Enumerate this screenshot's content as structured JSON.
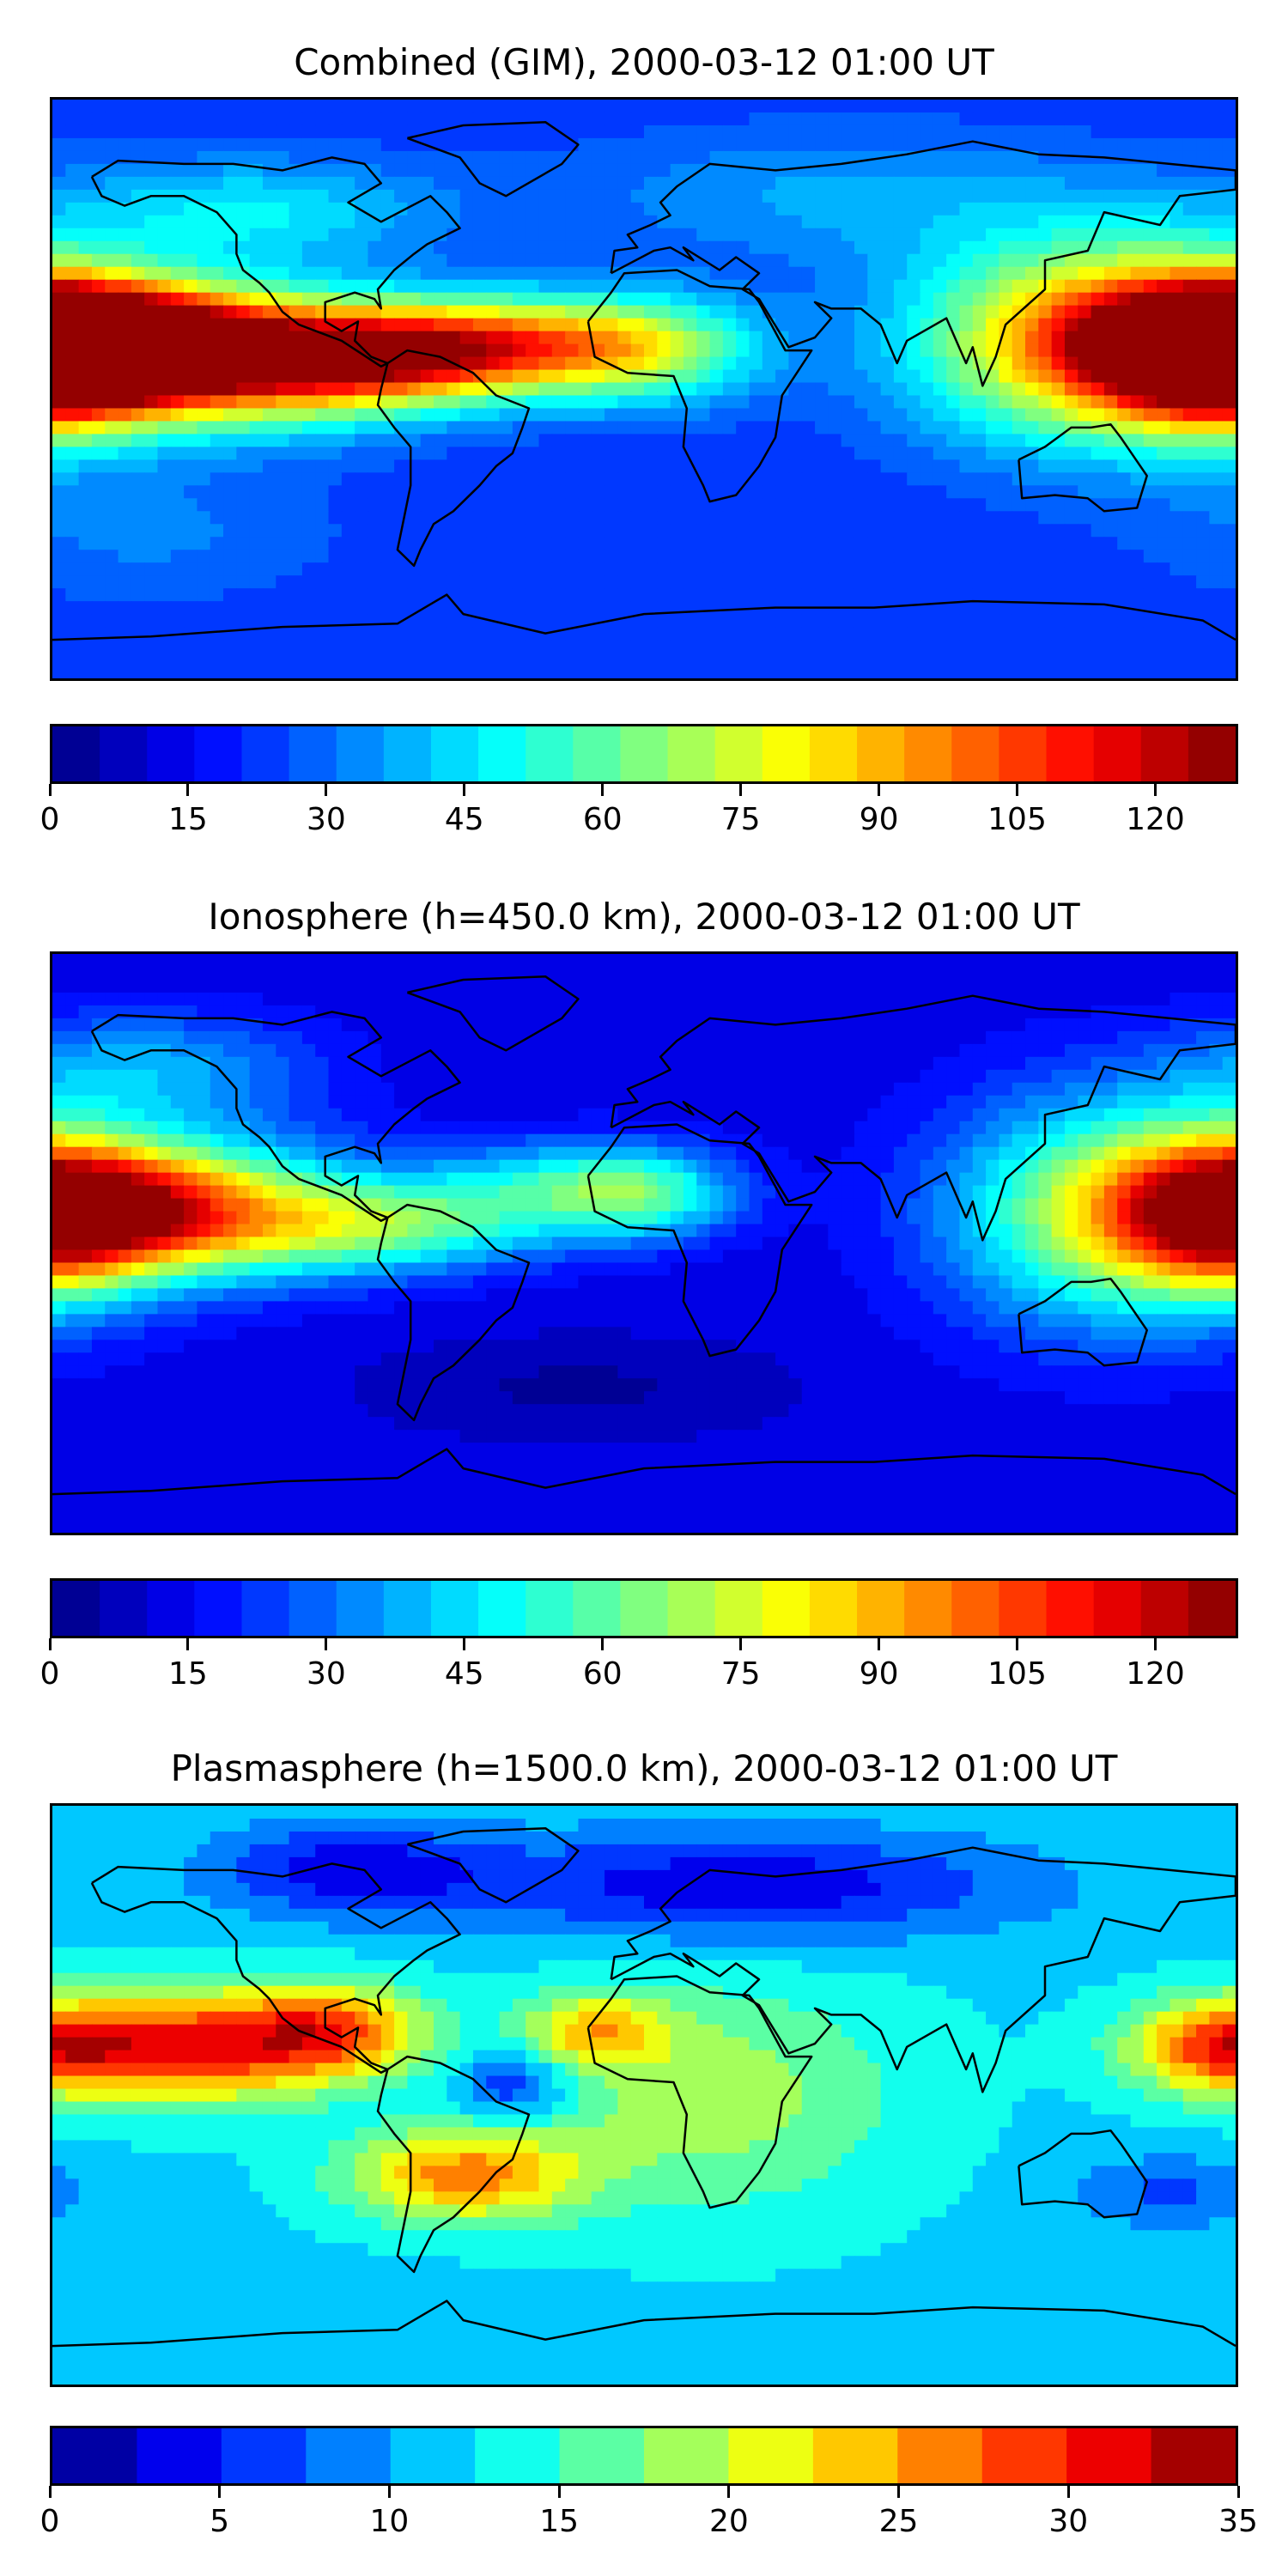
{
  "panels": [
    {
      "title": "Combined (GIM), 2000-03-12 01:00 UT",
      "colorbar": {
        "min": 0,
        "max": 129,
        "step": 5.16,
        "ticks": [
          "0",
          "15",
          "30",
          "45",
          "60",
          "75",
          "90",
          "105",
          "120"
        ],
        "tick_values": [
          0,
          15,
          30,
          45,
          60,
          75,
          90,
          105,
          120
        ]
      },
      "field": {
        "base": 22,
        "blobs": [
          {
            "lon": -165,
            "lat": 15,
            "amp": 95,
            "slon": 35,
            "slat": 12
          },
          {
            "lon": -120,
            "lat": 8,
            "amp": 70,
            "slon": 40,
            "slat": 14
          },
          {
            "lon": -75,
            "lat": 10,
            "amp": 55,
            "slon": 35,
            "slat": 10
          },
          {
            "lon": -45,
            "lat": 15,
            "amp": 45,
            "slon": 35,
            "slat": 10
          },
          {
            "lon": 0,
            "lat": 12,
            "amp": 40,
            "slon": 25,
            "slat": 12
          },
          {
            "lon": 140,
            "lat": 15,
            "amp": 75,
            "slon": 40,
            "slat": 22
          },
          {
            "lon": 178,
            "lat": 10,
            "amp": 80,
            "slon": 25,
            "slat": 15
          },
          {
            "lon": -120,
            "lat": 55,
            "amp": 25,
            "slon": 40,
            "slat": 12
          },
          {
            "lon": 60,
            "lat": 60,
            "amp": 15,
            "slon": 60,
            "slat": 15
          },
          {
            "lon": -150,
            "lat": -45,
            "amp": 10,
            "slon": 40,
            "slat": 15
          }
        ]
      }
    },
    {
      "title": "Ionosphere  (h=450.0 km), 2000-03-12 01:00 UT",
      "colorbar": {
        "min": 0,
        "max": 129,
        "step": 5.16,
        "ticks": [
          "0",
          "15",
          "30",
          "45",
          "60",
          "75",
          "90",
          "105",
          "120"
        ],
        "tick_values": [
          0,
          15,
          30,
          45,
          60,
          75,
          90,
          105,
          120
        ]
      },
      "field": {
        "base": 12,
        "blobs": [
          {
            "lon": -165,
            "lat": 10,
            "amp": 70,
            "slon": 30,
            "slat": 14
          },
          {
            "lon": -125,
            "lat": 12,
            "amp": 40,
            "slon": 30,
            "slat": 16
          },
          {
            "lon": -80,
            "lat": 5,
            "amp": 45,
            "slon": 35,
            "slat": 10
          },
          {
            "lon": -30,
            "lat": 18,
            "amp": 30,
            "slon": 30,
            "slat": 10
          },
          {
            "lon": 0,
            "lat": 15,
            "amp": 35,
            "slon": 20,
            "slat": 10
          },
          {
            "lon": 140,
            "lat": 10,
            "amp": 55,
            "slon": 35,
            "slat": 25
          },
          {
            "lon": 178,
            "lat": 10,
            "amp": 60,
            "slon": 25,
            "slat": 18
          },
          {
            "lon": -150,
            "lat": 55,
            "amp": 25,
            "slon": 35,
            "slat": 12
          },
          {
            "lon": -20,
            "lat": -45,
            "amp": -8,
            "slon": 40,
            "slat": 10
          }
        ]
      }
    },
    {
      "title": "Plasmasphere (h=1500.0 km), 2000-03-12 01:00 UT",
      "colorbar": {
        "min": 0,
        "max": 35,
        "step": 2.5,
        "ticks": [
          "0",
          "5",
          "10",
          "15",
          "20",
          "25",
          "30",
          "35"
        ],
        "tick_values": [
          0,
          5,
          10,
          15,
          20,
          25,
          30,
          35
        ]
      },
      "field": {
        "base": 12,
        "blobs": [
          {
            "lon": -140,
            "lat": 15,
            "amp": 18,
            "slon": 30,
            "slat": 12
          },
          {
            "lon": -95,
            "lat": 20,
            "amp": 14,
            "slon": 20,
            "slat": 10
          },
          {
            "lon": -55,
            "lat": -25,
            "amp": 14,
            "slon": 25,
            "slat": 10
          },
          {
            "lon": -15,
            "lat": 20,
            "amp": 10,
            "slon": 15,
            "slat": 8
          },
          {
            "lon": 20,
            "lat": 0,
            "amp": 7,
            "slon": 40,
            "slat": 25
          },
          {
            "lon": 175,
            "lat": 15,
            "amp": 14,
            "slon": 20,
            "slat": 10
          },
          {
            "lon": -40,
            "lat": 3,
            "amp": -8,
            "slon": 12,
            "slat": 8
          },
          {
            "lon": 30,
            "lat": 65,
            "amp": -9,
            "slon": 60,
            "slat": 12
          },
          {
            "lon": -90,
            "lat": 70,
            "amp": -8,
            "slon": 30,
            "slat": 10
          },
          {
            "lon": 160,
            "lat": -30,
            "amp": -5,
            "slon": 20,
            "slat": 8
          }
        ]
      }
    }
  ]
}
